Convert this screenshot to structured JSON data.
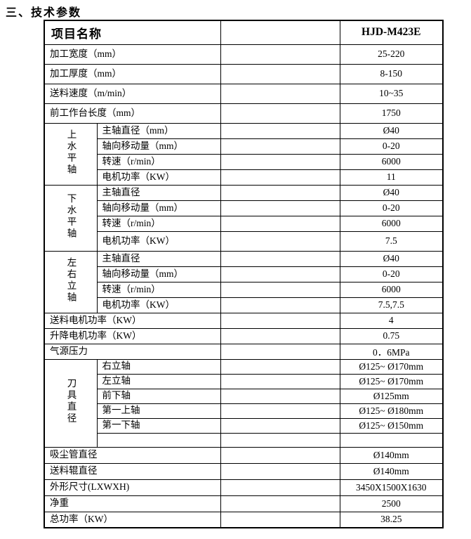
{
  "title": "三、技术参数",
  "table": {
    "header": {
      "name": "项目名称",
      "model": "HJD-M423E"
    },
    "rows_top": [
      {
        "label": "加工宽度（mm）",
        "value": "25-220"
      },
      {
        "label": "加工厚度（mm）",
        "value": "8-150"
      },
      {
        "label": "送料速度（m/min）",
        "value": "10~35"
      },
      {
        "label": "前工作台长度（mm）",
        "value": "1750"
      }
    ],
    "groups": [
      {
        "name": "上水平轴",
        "rows": [
          {
            "label": "主轴直径（mm）",
            "value": "Ø40"
          },
          {
            "label": "轴向移动量（mm）",
            "value": "0-20"
          },
          {
            "label": "转速（r/min）",
            "value": "6000"
          },
          {
            "label": "电机功率（KW）",
            "value": "11"
          }
        ]
      },
      {
        "name": "下水平轴",
        "rows": [
          {
            "label": "主轴直径",
            "value": "Ø40"
          },
          {
            "label": "轴向移动量（mm）",
            "value": "0-20"
          },
          {
            "label": "转速（r/min）",
            "value": "6000"
          },
          {
            "label": "电机功率（KW）",
            "value": "7.5"
          }
        ]
      },
      {
        "name": "左右立轴",
        "rows": [
          {
            "label": "主轴直径",
            "value": "Ø40"
          },
          {
            "label": "轴向移动量（mm）",
            "value": "0-20"
          },
          {
            "label": "转速（r/min）",
            "value": "6000"
          },
          {
            "label": "电机功率（KW）",
            "value": "7.5,7.5"
          }
        ]
      }
    ],
    "rows_mid": [
      {
        "label": "送料电机功率（KW）",
        "value": "4"
      },
      {
        "label": "升降电机功率（KW）",
        "value": "0.75"
      },
      {
        "label": "气源压力",
        "value": "0．6MPa"
      }
    ],
    "tool_group": {
      "name": "刀具直径",
      "rows": [
        {
          "label": "右立轴",
          "value": "Ø125~ Ø170mm"
        },
        {
          "label": "左立轴",
          "value": "Ø125~ Ø170mm"
        },
        {
          "label": "前下轴",
          "value": "Ø125mm"
        },
        {
          "label": "第一上轴",
          "value": "Ø125~ Ø180mm"
        },
        {
          "label": "第一下轴",
          "value": "Ø125~ Ø150mm"
        }
      ]
    },
    "rows_bottom": [
      {
        "label": "吸尘管直径",
        "value": "Ø140mm"
      },
      {
        "label": "送料辊直径",
        "value": "Ø140mm"
      },
      {
        "label": "外形尺寸(LXWXH)",
        "value": "3450X1500X1630"
      },
      {
        "label": "净重",
        "value": "2500"
      },
      {
        "label": "总功率（KW）",
        "value": "38.25"
      }
    ]
  }
}
